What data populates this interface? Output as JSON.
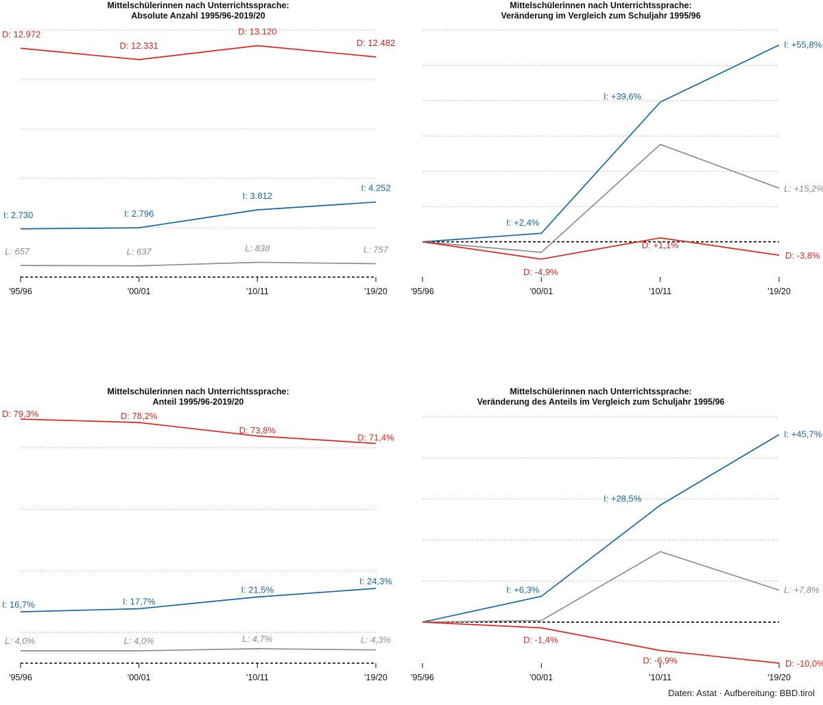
{
  "colors": {
    "D": "#e2231a",
    "I": "#1366a5",
    "L": "#8c8c8c",
    "grid": "#b0b0b0",
    "text": "#111111"
  },
  "credit": "Daten: Astat · Aufbereitung: BBD.tirol",
  "chart_data": [
    {
      "type": "line",
      "title": "Mittelschülerinnen nach Unterrichtssprache:",
      "subtitle": "Absolute Anzahl 1995/96-2019/20",
      "categories": [
        "'95/96",
        "'00/01",
        "'10/11",
        "'19/20"
      ],
      "ylim": [
        0,
        14000
      ],
      "gridlines": [
        2800,
        5600,
        8400,
        11200,
        14000
      ],
      "baseline": 0,
      "grid": true,
      "series": [
        {
          "name": "D",
          "color_key": "D",
          "values": [
            12972,
            12331,
            13120,
            12482
          ],
          "labels": [
            "D: 12.972",
            "D: 12.331",
            "D: 13.120",
            "D: 12.482"
          ]
        },
        {
          "name": "I",
          "color_key": "I",
          "values": [
            2730,
            2796,
            3812,
            4252
          ],
          "labels": [
            "I: 2.730",
            "I: 2.796",
            "I: 3.812",
            "I: 4.252"
          ]
        },
        {
          "name": "L",
          "color_key": "L",
          "values": [
            657,
            637,
            838,
            757
          ],
          "labels": [
            "L: 657",
            "L: 637",
            "L: 838",
            "L: 757"
          ]
        }
      ]
    },
    {
      "type": "line",
      "title": "Mittelschülerinnen nach Unterrichtssprache:",
      "subtitle": "Veränderung im Vergleich zum Schuljahr 1995/96",
      "categories": [
        "'95/96",
        "'00/01",
        "'10/11",
        "'19/20"
      ],
      "ylim": [
        -10,
        60
      ],
      "gridlines": [
        10,
        20,
        30,
        40,
        50,
        60
      ],
      "baseline": 0,
      "grid": true,
      "series": [
        {
          "name": "I",
          "color_key": "I",
          "values": [
            0,
            2.4,
            39.6,
            55.8
          ],
          "labels": [
            "",
            "I: +2,4%",
            "I: +39,6%",
            "I: +55,8%"
          ]
        },
        {
          "name": "L",
          "color_key": "L",
          "values": [
            0,
            -3.0,
            27.6,
            15.2
          ],
          "labels": [
            "",
            "",
            "",
            "L: +15,2%"
          ]
        },
        {
          "name": "D",
          "color_key": "D",
          "values": [
            0,
            -4.9,
            1.1,
            -3.8
          ],
          "labels": [
            "",
            "D: -4,9%",
            "D: +1,1%",
            "D: -3,8%"
          ]
        }
      ]
    },
    {
      "type": "line",
      "title": "Mittelschülerinnen nach Unterrichtssprache:",
      "subtitle": "Anteil 1995/96-2019/20",
      "categories": [
        "'95/96",
        "'00/01",
        "'10/11",
        "'19/20"
      ],
      "ylim": [
        0,
        80
      ],
      "gridlines": [
        10,
        30,
        50,
        70
      ],
      "baseline": 0,
      "grid": true,
      "series": [
        {
          "name": "D",
          "color_key": "D",
          "values": [
            79.3,
            78.2,
            73.8,
            71.4
          ],
          "labels": [
            "D: 79,3%",
            "D: 78,2%",
            "D: 73,8%",
            "D: 71,4%"
          ]
        },
        {
          "name": "I",
          "color_key": "I",
          "values": [
            16.7,
            17.7,
            21.5,
            24.3
          ],
          "labels": [
            "I: 16,7%",
            "I: 17,7%",
            "I: 21,5%",
            "I: 24,3%"
          ]
        },
        {
          "name": "L",
          "color_key": "L",
          "values": [
            4.0,
            4.0,
            4.7,
            4.3
          ],
          "labels": [
            "L: 4,0%",
            "L: 4,0%",
            "L: 4,7%",
            "L: 4,3%"
          ]
        }
      ]
    },
    {
      "type": "line",
      "title": "Mittelschülerinnen nach Unterrichtssprache:",
      "subtitle": "Veränderung des Anteils im Vergleich zum Schuljahr 1995/96",
      "categories": [
        "'95/96",
        "'00/01",
        "'10/11",
        "'19/20"
      ],
      "ylim": [
        -10,
        50
      ],
      "gridlines": [
        10,
        20,
        30,
        40,
        50
      ],
      "baseline": 0,
      "grid": true,
      "series": [
        {
          "name": "I",
          "color_key": "I",
          "values": [
            0,
            6.3,
            28.5,
            45.7
          ],
          "labels": [
            "",
            "I: +6,3%",
            "I: +28,5%",
            "I: +45,7%"
          ]
        },
        {
          "name": "L",
          "color_key": "L",
          "values": [
            0,
            0.4,
            17.2,
            7.8
          ],
          "labels": [
            "",
            "",
            "",
            "L: +7,8%"
          ]
        },
        {
          "name": "D",
          "color_key": "D",
          "values": [
            0,
            -1.4,
            -6.9,
            -10.0
          ],
          "labels": [
            "",
            "D: -1,4%",
            "D: -6,9%",
            "D: -10,0%"
          ]
        }
      ]
    }
  ]
}
